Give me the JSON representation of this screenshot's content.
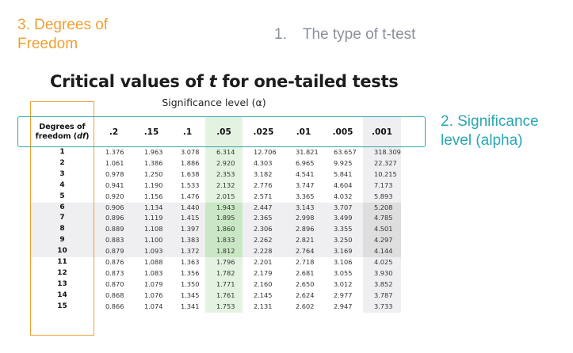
{
  "annotations": {
    "df": "3. Degrees of Freedom",
    "type_number": "1.",
    "type_text": "The type of t-test",
    "alpha": "2. Significance level (alpha)"
  },
  "title": {
    "before": "Critical values of ",
    "t": "t",
    "after": " for one-tailed tests"
  },
  "significance_label": "Significance level (α)",
  "table": {
    "df_header_line1": "Degrees of",
    "df_header_line2_pre": "freedom (",
    "df_header_line2_italic": "df",
    "df_header_line2_post": ")",
    "alpha_levels": [
      ".2",
      ".15",
      ".1",
      ".05",
      ".025",
      ".01",
      ".005",
      ".001"
    ],
    "rows": [
      {
        "df": "1",
        "values": [
          "1.376",
          "1.963",
          "3.078",
          "6.314",
          "12.706",
          "31.821",
          "63.657",
          "318.309"
        ]
      },
      {
        "df": "2",
        "values": [
          "1.061",
          "1.386",
          "1.886",
          "2.920",
          "4.303",
          "6.965",
          "9.925",
          "22.327"
        ]
      },
      {
        "df": "3",
        "values": [
          "0.978",
          "1.250",
          "1.638",
          "2.353",
          "3.182",
          "4.541",
          "5.841",
          "10.215"
        ]
      },
      {
        "df": "4",
        "values": [
          "0.941",
          "1.190",
          "1.533",
          "2.132",
          "2.776",
          "3.747",
          "4.604",
          "7.173"
        ]
      },
      {
        "df": "5",
        "values": [
          "0.920",
          "1.156",
          "1.476",
          "2.015",
          "2.571",
          "3.365",
          "4.032",
          "5.893"
        ]
      },
      {
        "df": "6",
        "values": [
          "0.906",
          "1.134",
          "1.440",
          "1.943",
          "2.447",
          "3.143",
          "3.707",
          "5.208"
        ]
      },
      {
        "df": "7",
        "values": [
          "0.896",
          "1.119",
          "1.415",
          "1.895",
          "2.365",
          "2.998",
          "3.499",
          "4.785"
        ]
      },
      {
        "df": "8",
        "values": [
          "0.889",
          "1.108",
          "1.397",
          "1.860",
          "2.306",
          "2.896",
          "3.355",
          "4.501"
        ]
      },
      {
        "df": "9",
        "values": [
          "0.883",
          "1.100",
          "1.383",
          "1.833",
          "2.262",
          "2.821",
          "3.250",
          "4.297"
        ]
      },
      {
        "df": "10",
        "values": [
          "0.879",
          "1.093",
          "1.372",
          "1.812",
          "2.228",
          "2.764",
          "3.169",
          "4.144"
        ]
      },
      {
        "df": "11",
        "values": [
          "0.876",
          "1.088",
          "1.363",
          "1.796",
          "2.201",
          "2.718",
          "3.106",
          "4.025"
        ]
      },
      {
        "df": "12",
        "values": [
          "0.873",
          "1.083",
          "1.356",
          "1.782",
          "2.179",
          "2.681",
          "3.055",
          "3.930"
        ]
      },
      {
        "df": "13",
        "values": [
          "0.870",
          "1.079",
          "1.350",
          "1.771",
          "2.160",
          "2.650",
          "3.012",
          "3.852"
        ]
      },
      {
        "df": "14",
        "values": [
          "0.868",
          "1.076",
          "1.345",
          "1.761",
          "2.145",
          "2.624",
          "2.977",
          "3.787"
        ]
      },
      {
        "df": "15",
        "values": [
          "0.866",
          "1.074",
          "1.341",
          "1.753",
          "2.131",
          "2.602",
          "2.947",
          "3.733"
        ]
      }
    ]
  },
  "colors": {
    "annotation_df": "#f0a030",
    "annotation_alpha": "#2aa7b0",
    "annotation_type": "#8a9299",
    "highlight_05": "#c9e7c4",
    "row_shade": "#efeff1"
  }
}
